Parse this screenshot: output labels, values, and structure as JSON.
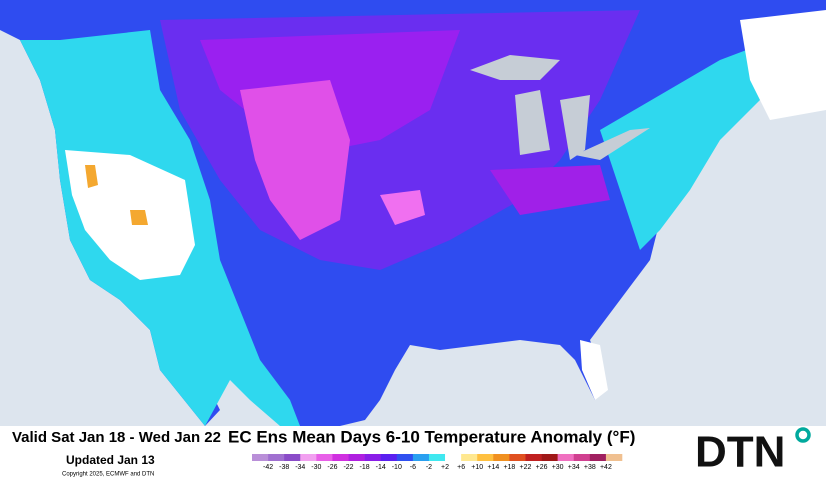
{
  "header": {
    "valid": "Valid Sat Jan 18 - Wed Jan 22",
    "title": "EC Ens Mean Days 6-10 Temperature Anomaly (°F)",
    "updated": "Updated Jan 13",
    "copyright": "Copyright 2025, ECMWF and DTN"
  },
  "logo": {
    "text": "DTN"
  },
  "legend": {
    "labels": [
      "-42",
      "-38",
      "-34",
      "-30",
      "-26",
      "-22",
      "-18",
      "-14",
      "-10",
      "-6",
      "-2",
      "+2",
      "+6",
      "+10",
      "+14",
      "+18",
      "+22",
      "+26",
      "+30",
      "+34",
      "+38",
      "+42"
    ],
    "colors": [
      "#b98fd8",
      "#a070d0",
      "#8a4cc8",
      "#f2a0f0",
      "#e860e8",
      "#d030e0",
      "#b020e0",
      "#8a1ee8",
      "#5a20f0",
      "#3050f0",
      "#2aa0f0",
      "#40e8f0",
      "#ffffff",
      "#ffe890",
      "#ffc040",
      "#f09020",
      "#e05020",
      "#c02020",
      "#a01818",
      "#f070c0",
      "#d04090",
      "#a02060",
      "#f0c090"
    ]
  }
}
